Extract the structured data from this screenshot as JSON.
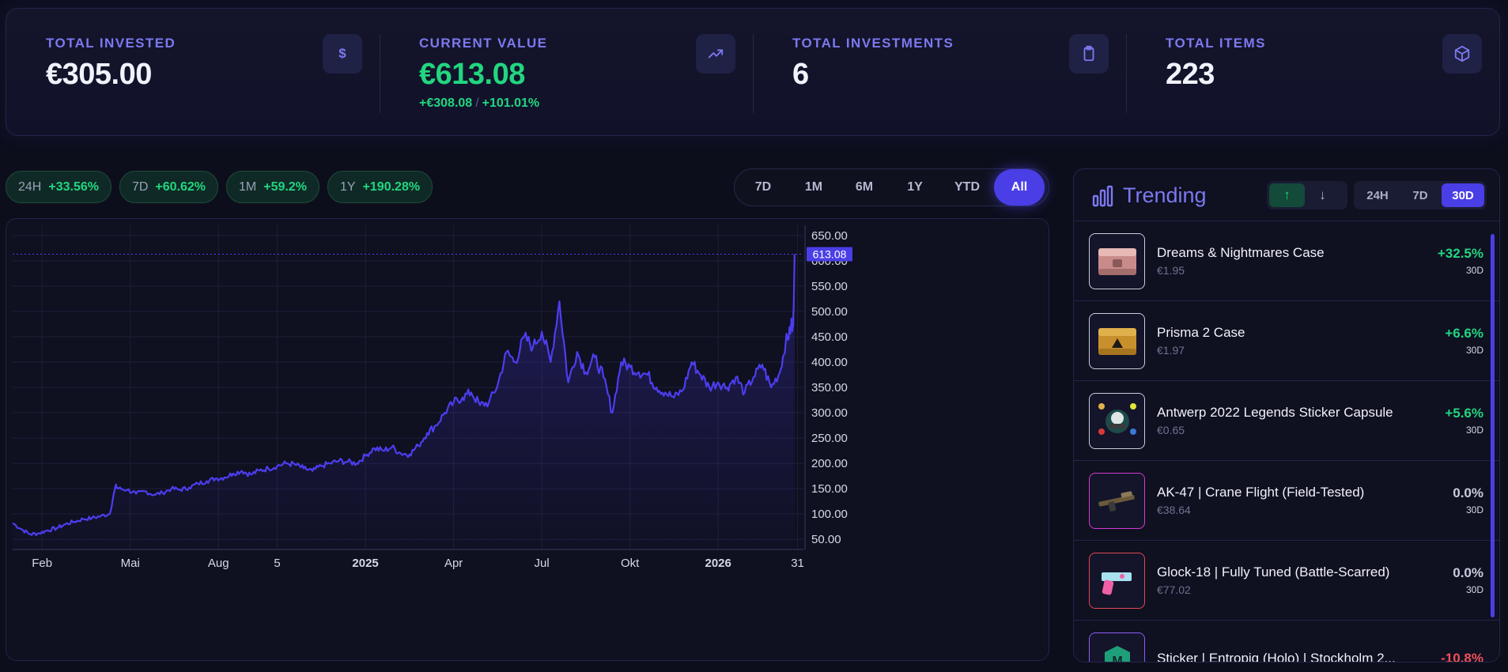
{
  "stats": [
    {
      "label": "TOTAL INVESTED",
      "value": "€305.00",
      "icon": "dollar-icon",
      "icon_text": "$",
      "sub": null
    },
    {
      "label": "CURRENT VALUE",
      "value": "€613.08",
      "icon": "trending-up-icon",
      "sub": {
        "abs": "+€308.08",
        "sep": "/",
        "pct": "+101.01%"
      }
    },
    {
      "label": "TOTAL INVESTMENTS",
      "value": "6",
      "icon": "clipboard-icon",
      "sub": null
    },
    {
      "label": "TOTAL ITEMS",
      "value": "223",
      "icon": "box-icon",
      "sub": null
    }
  ],
  "perf_chips": [
    {
      "period": "24H",
      "change": "+33.56%"
    },
    {
      "period": "7D",
      "change": "+60.62%"
    },
    {
      "period": "1M",
      "change": "+59.2%"
    },
    {
      "period": "1Y",
      "change": "+190.28%"
    }
  ],
  "ranges": [
    "7D",
    "1M",
    "6M",
    "1Y",
    "YTD",
    "All"
  ],
  "active_range": "All",
  "chart_data": {
    "type": "area",
    "current_value_label": "613.08",
    "y_ticks": [
      "650.00",
      "600.00",
      "550.00",
      "500.00",
      "450.00",
      "400.00",
      "350.00",
      "300.00",
      "250.00",
      "200.00",
      "150.00",
      "100.00",
      "50.00"
    ],
    "ylim": [
      30,
      670
    ],
    "x_ticks": [
      "Feb",
      "Mai",
      "Aug",
      "5",
      "2025",
      "Apr",
      "Jul",
      "Okt",
      "2026",
      "31"
    ],
    "x_ticks_bold": [
      "2025",
      "2026"
    ],
    "x_tick_pos": [
      1,
      4,
      7,
      9,
      12,
      15,
      18,
      21,
      24,
      26.7
    ],
    "xlim": [
      0,
      26.9
    ],
    "series_color": "#4d3df0",
    "x": [
      0,
      0.3,
      0.6,
      0.9,
      1.2,
      1.5,
      1.8,
      2.1,
      2.4,
      2.7,
      3.0,
      3.3,
      3.5,
      3.6,
      3.9,
      4.2,
      4.5,
      4.8,
      5.1,
      5.4,
      5.7,
      6.0,
      6.3,
      6.6,
      6.9,
      7.2,
      7.5,
      7.8,
      8.1,
      8.4,
      8.7,
      9.0,
      9.3,
      9.6,
      9.9,
      10.2,
      10.5,
      10.8,
      11.1,
      11.4,
      11.7,
      12.0,
      12.3,
      12.6,
      12.9,
      13.2,
      13.5,
      13.8,
      14.1,
      14.4,
      14.7,
      15.0,
      15.3,
      15.6,
      15.9,
      16.2,
      16.5,
      16.8,
      17.1,
      17.4,
      17.7,
      18.0,
      18.3,
      18.6,
      18.9,
      19.2,
      19.5,
      19.8,
      20.1,
      20.4,
      20.7,
      21.0,
      21.3,
      21.6,
      21.9,
      22.2,
      22.5,
      22.8,
      23.1,
      23.4,
      23.7,
      24.0,
      24.3,
      24.6,
      24.9,
      25.2,
      25.5,
      25.8,
      26.1,
      26.3,
      26.45,
      26.5,
      26.55,
      26.6
    ],
    "y": [
      82,
      70,
      60,
      62,
      68,
      72,
      80,
      85,
      90,
      92,
      96,
      100,
      155,
      150,
      148,
      140,
      145,
      138,
      142,
      150,
      148,
      152,
      160,
      165,
      170,
      172,
      180,
      185,
      178,
      186,
      190,
      195,
      200,
      198,
      190,
      185,
      195,
      200,
      205,
      203,
      200,
      215,
      230,
      225,
      232,
      220,
      218,
      235,
      260,
      275,
      300,
      320,
      330,
      340,
      315,
      320,
      355,
      420,
      400,
      450,
      430,
      460,
      400,
      520,
      360,
      420,
      380,
      410,
      370,
      300,
      400,
      390,
      380,
      375,
      350,
      340,
      330,
      345,
      400,
      375,
      350,
      360,
      350,
      370,
      340,
      370,
      395,
      350,
      380,
      440,
      460,
      480,
      470,
      613
    ]
  },
  "trending": {
    "title": "Trending",
    "direction_options": [
      "up-arrow-icon",
      "down-arrow-icon"
    ],
    "active_direction": "up",
    "periods": [
      "24H",
      "7D",
      "30D"
    ],
    "active_period": "30D",
    "items": [
      {
        "name": "Dreams & Nightmares Case",
        "price": "€1.95",
        "change": "+32.5%",
        "period": "30D",
        "tone": "pos",
        "thumb": "case-pink-icon",
        "border": "#c9ccdd"
      },
      {
        "name": "Prisma 2 Case",
        "price": "€1.97",
        "change": "+6.6%",
        "period": "30D",
        "tone": "pos",
        "thumb": "case-gold-icon",
        "border": "#c9ccdd"
      },
      {
        "name": "Antwerp 2022 Legends Sticker Capsule",
        "price": "€0.65",
        "change": "+5.6%",
        "period": "30D",
        "tone": "pos",
        "thumb": "sticker-capsule-icon",
        "border": "#c9ccdd"
      },
      {
        "name": "AK-47 | Crane Flight (Field-Tested)",
        "price": "€38.64",
        "change": "0.0%",
        "period": "30D",
        "tone": "neu",
        "thumb": "rifle-icon",
        "border": "#d13bd1"
      },
      {
        "name": "Glock-18 | Fully Tuned (Battle-Scarred)",
        "price": "€77.02",
        "change": "0.0%",
        "period": "30D",
        "tone": "neu",
        "thumb": "pistol-icon",
        "border": "#e0484f"
      },
      {
        "name": "Sticker | Entropiq (Holo) | Stockholm 2...",
        "price": "",
        "change": "-10.8%",
        "period": "",
        "tone": "neg",
        "thumb": "sticker-icon",
        "border": "#8b5cf6"
      }
    ]
  }
}
